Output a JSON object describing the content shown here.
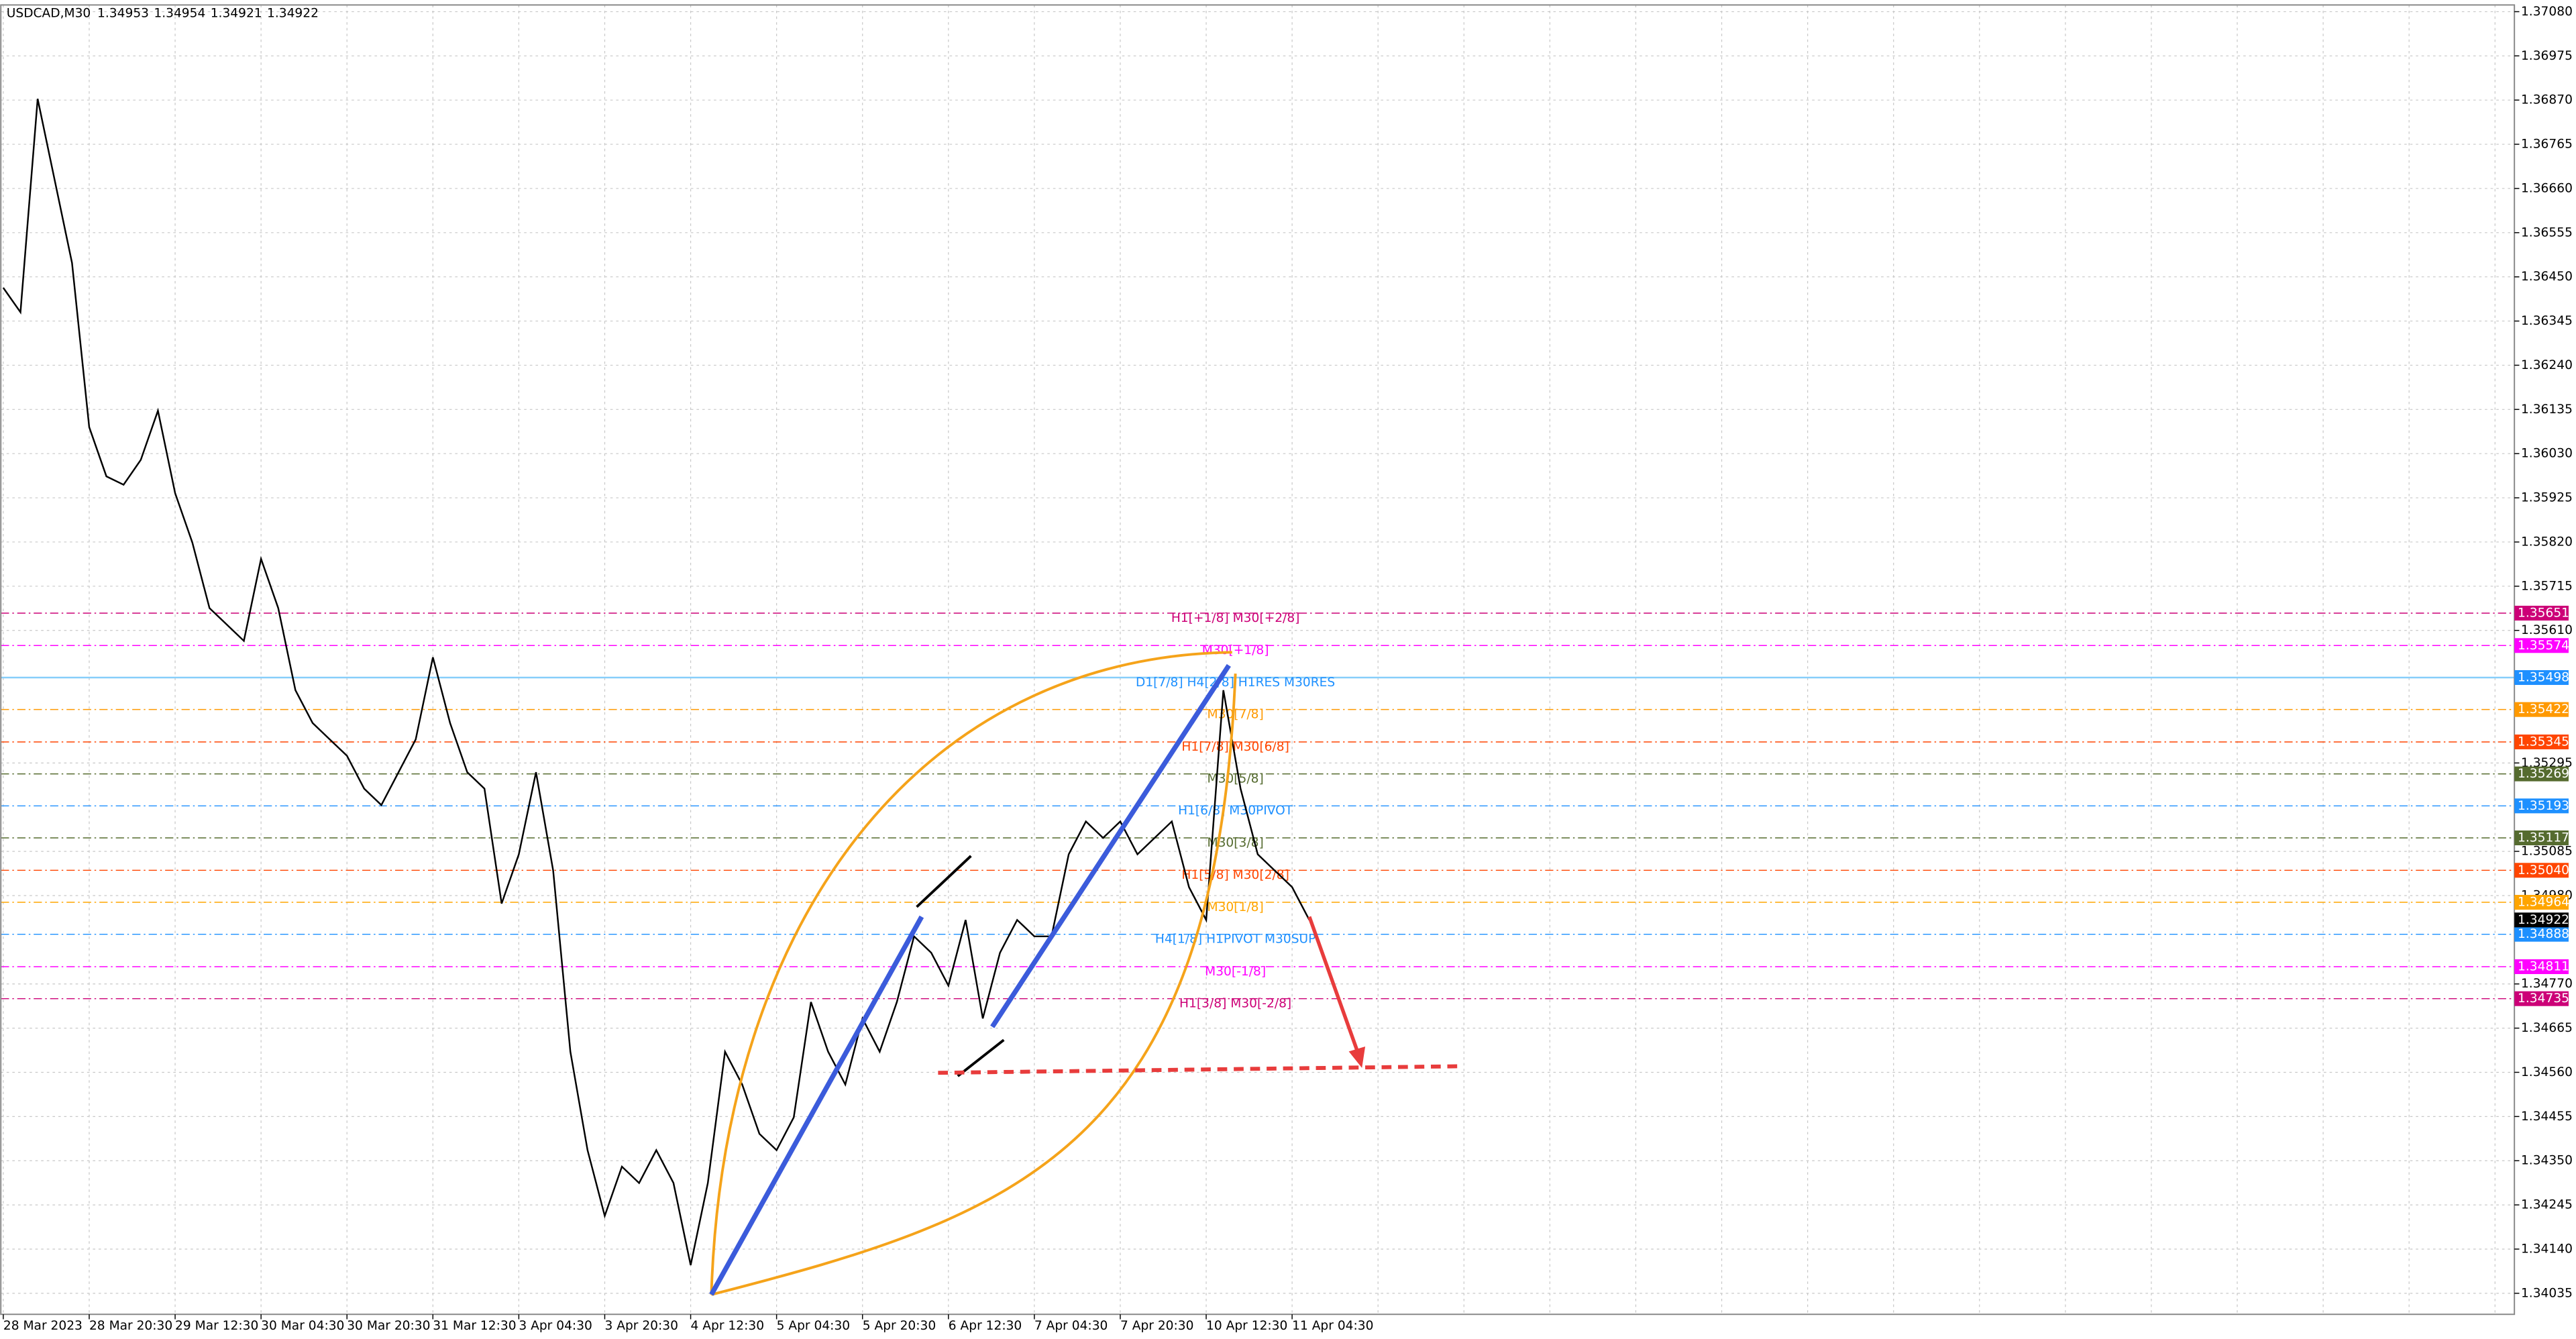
{
  "chart_data": {
    "type": "line",
    "symbol": "USDCAD,M30",
    "ohlc": [
      1.34953,
      1.34954,
      1.34921,
      1.34922
    ],
    "color": "#000000",
    "categories": [
      "28 Mar 2023",
      null,
      null,
      null,
      null,
      "28 Mar 20:30",
      null,
      null,
      null,
      null,
      "29 Mar 12:30",
      null,
      null,
      null,
      null,
      "30 Mar 04:30",
      null,
      null,
      null,
      null,
      "30 Mar 20:30",
      null,
      null,
      null,
      null,
      "31 Mar 12:30",
      null,
      null,
      null,
      null,
      "3 Apr 04:30",
      null,
      null,
      null,
      null,
      "3 Apr 20:30",
      null,
      null,
      null,
      null,
      "4 Apr 12:30",
      null,
      null,
      null,
      null,
      "5 Apr 04:30",
      null,
      null,
      null,
      null,
      "5 Apr 20:30",
      null,
      null,
      null,
      null,
      "6 Apr 12:30",
      null,
      null,
      null,
      null,
      "7 Apr 04:30",
      null,
      null,
      null,
      null,
      "7 Apr 20:30",
      null,
      null,
      null,
      null,
      "10 Apr 12:30",
      null,
      null,
      null,
      null,
      "11 Apr 04:30",
      null
    ],
    "values": [
      1.36424,
      1.36366,
      1.36873,
      1.36678,
      1.36483,
      1.36093,
      1.35976,
      1.35956,
      1.36015,
      1.36132,
      1.35936,
      1.35819,
      1.35663,
      1.35624,
      1.35585,
      1.3578,
      1.35663,
      1.35468,
      1.3539,
      1.35351,
      1.35312,
      1.35234,
      1.35195,
      1.35273,
      1.35351,
      1.35546,
      1.3539,
      1.35273,
      1.35234,
      1.34961,
      1.35078,
      1.35273,
      1.35039,
      1.34609,
      1.34375,
      1.34219,
      1.34336,
      1.34297,
      1.34375,
      1.34297,
      1.34102,
      1.34297,
      1.34609,
      1.34531,
      1.34414,
      1.34375,
      1.34453,
      1.34727,
      1.34609,
      1.34531,
      1.34688,
      1.34609,
      1.34727,
      1.34883,
      1.34844,
      1.34766,
      1.34922,
      1.34688,
      1.34844,
      1.34922,
      1.34883,
      1.34883,
      1.35078,
      1.35156,
      1.35117,
      1.35156,
      1.35078,
      1.35117,
      1.35156,
      1.35,
      1.34922,
      1.35468,
      1.35234,
      1.35078,
      1.35039,
      1.35,
      1.34922
    ],
    "ylim": [
      1.33985,
      1.37096
    ],
    "yticks": [
      {
        "value": 1.3708,
        "label": "1.37080"
      },
      1.36975,
      {
        "value": 1.3687,
        "label": "1.36870"
      },
      1.36765,
      {
        "value": 1.3666,
        "label": "1.36660"
      },
      1.36555,
      {
        "value": 1.3645,
        "label": "1.36450"
      },
      1.36345,
      {
        "value": 1.3624,
        "label": "1.36240"
      },
      1.36135,
      {
        "value": 1.3603,
        "label": "1.36030"
      },
      1.35925,
      {
        "value": 1.3582,
        "label": "1.35820"
      },
      1.35715,
      {
        "value": 1.3561,
        "label": "1.35610"
      },
      1.35295,
      1.35085,
      {
        "value": 1.3498,
        "label": "1.34980"
      },
      {
        "value": 1.3477,
        "label": "1.34770"
      },
      1.34665,
      {
        "value": 1.3456,
        "label": "1.34560"
      },
      1.34455,
      {
        "value": 1.3435,
        "label": "1.34350"
      },
      1.34245,
      {
        "value": 1.3414,
        "label": "1.34140"
      },
      1.34035
    ],
    "grid": true,
    "bid": 1.34922,
    "levels": [
      {
        "value": 1.35651,
        "text": "H1[+1/8] M30[+2/8]",
        "color": "#cc0077"
      },
      {
        "value": 1.35574,
        "text": "M30[+1/8]",
        "color": "#ff00ff"
      },
      {
        "value": 1.35498,
        "text": "D1[7/8] H4[2/8] H1RES M30RES",
        "color": "#1e90ff"
      },
      {
        "value": 1.35422,
        "text": "M30[7/8]",
        "color": "#ff9900"
      },
      {
        "value": 1.35345,
        "text": "H1[7/8] M30[6/8]",
        "color": "#ff4500"
      },
      {
        "value": 1.35269,
        "text": "M30[5/8]",
        "color": "#556b2f"
      },
      {
        "value": 1.35193,
        "text": "H1[6/8] M30PIVOT",
        "color": "#1e90ff"
      },
      {
        "value": 1.35117,
        "text": "M30[3/8]",
        "color": "#556b2f"
      },
      {
        "value": 1.3504,
        "value_label": "1.35040",
        "text": "H1[5/8] M30[2/8]",
        "color": "#ff4500"
      },
      {
        "value": 1.34964,
        "text": "M30[1/8]",
        "color": "#ffa500"
      },
      {
        "value": 1.34888,
        "text": "H4[1/8] H1PIVOT M30SUP",
        "color": "#1e90ff"
      },
      {
        "value": 1.34811,
        "text": "M30[-1/8]",
        "color": "#ff00ff"
      },
      {
        "value": 1.34735,
        "text": "H1[3/8] M30[-2/8]",
        "color": "#cc0077"
      }
    ]
  }
}
